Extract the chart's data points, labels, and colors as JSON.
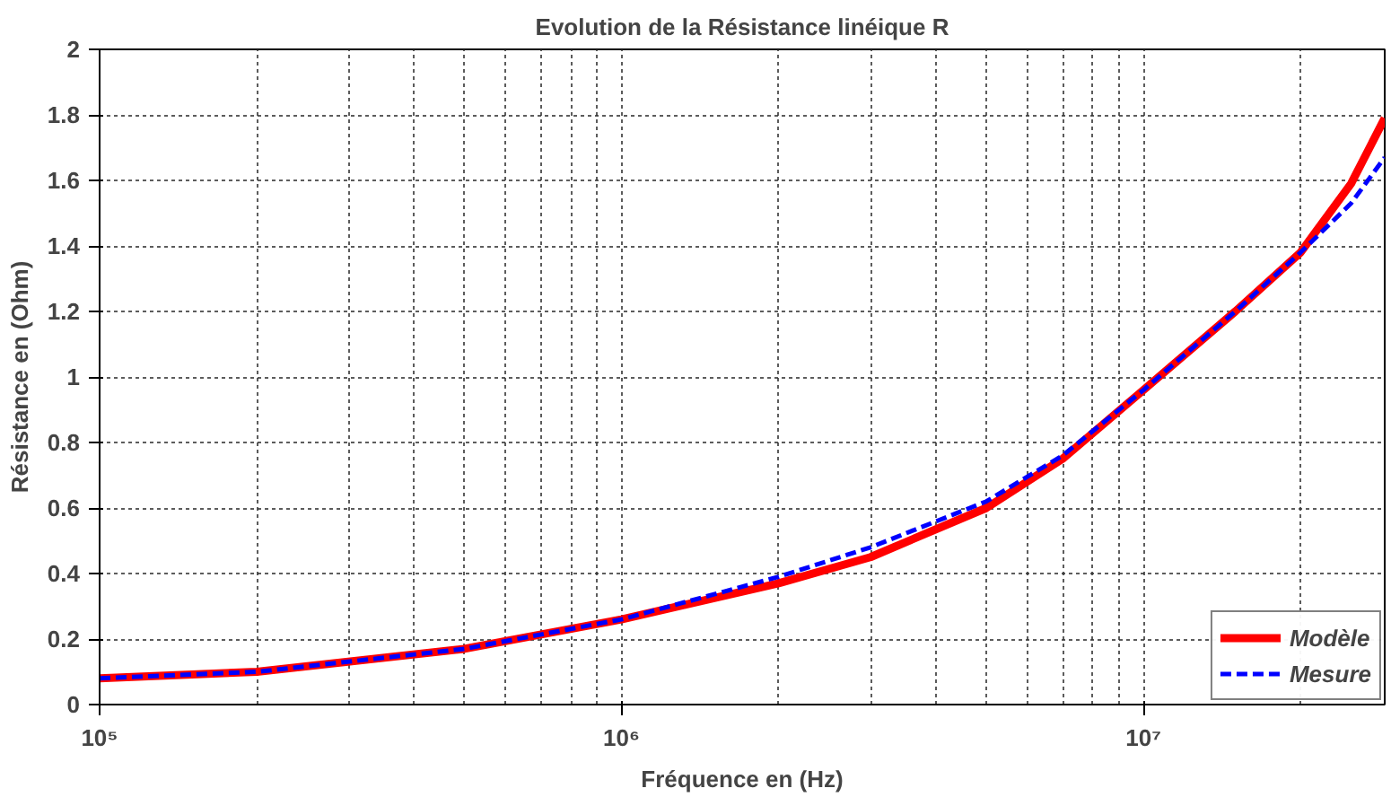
{
  "chart_data": {
    "type": "line",
    "title": "Evolution de la Résistance linéique R",
    "xlabel": "Fréquence en (Hz)",
    "ylabel": "Résistance en (Ohm)",
    "x": [
      100000,
      200000,
      500000,
      1000000,
      2000000,
      3000000,
      5000000,
      7000000,
      10000000,
      15000000,
      20000000,
      25000000,
      29000000
    ],
    "series": [
      {
        "name": "Modèle",
        "color": "#ff0000",
        "line_style": "solid",
        "values": [
          0.08,
          0.1,
          0.17,
          0.26,
          0.37,
          0.45,
          0.6,
          0.75,
          0.96,
          1.2,
          1.38,
          1.59,
          1.79
        ]
      },
      {
        "name": "Mesure",
        "color": "#0000ff",
        "line_style": "dashed",
        "values": [
          0.08,
          0.1,
          0.17,
          0.26,
          0.39,
          0.48,
          0.62,
          0.76,
          0.96,
          1.2,
          1.38,
          1.53,
          1.67
        ]
      }
    ],
    "log": "x",
    "xlim": [
      100000,
      29000000
    ],
    "ylim": [
      0,
      2
    ],
    "xticks": [
      {
        "value": 100000,
        "label": "10⁵"
      },
      {
        "value": 1000000,
        "label": "10⁶"
      },
      {
        "value": 10000000,
        "label": "10⁷"
      }
    ],
    "yticks": [
      0,
      0.2,
      0.4,
      0.6,
      0.8,
      1,
      1.2,
      1.4,
      1.6,
      1.8,
      2
    ],
    "grid": true,
    "legend": "bottom right",
    "marker": "none"
  }
}
